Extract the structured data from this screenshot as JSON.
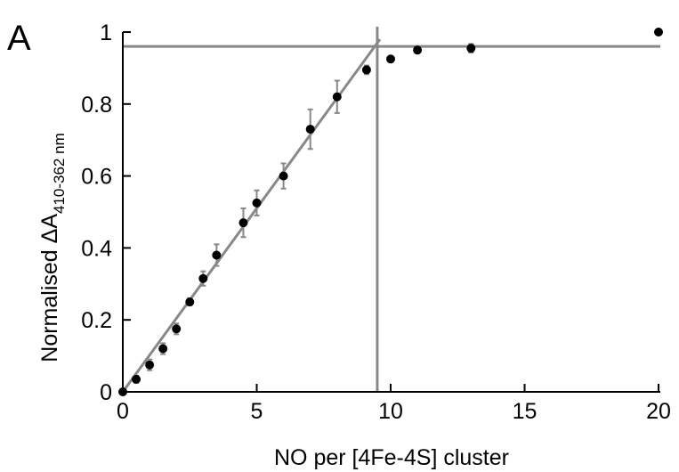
{
  "panel_label": "A",
  "chart_data": {
    "type": "scatter",
    "title": "",
    "xlabel": "NO per [4Fe-4S] cluster",
    "ylabel": {
      "main": "Normalised ΔA",
      "subscript": "410-362 nm"
    },
    "xlim": [
      0,
      20
    ],
    "ylim": [
      0,
      1
    ],
    "xticks": [
      0,
      5,
      10,
      15,
      20
    ],
    "xtick_labels": [
      "0",
      "5",
      "10",
      "15",
      "20"
    ],
    "yticks": [
      0,
      0.2,
      0.4,
      0.6,
      0.8,
      1
    ],
    "ytick_labels": [
      "0",
      "0.2",
      "0.4",
      "0.6",
      "0.8",
      "1"
    ],
    "grid": false,
    "series": [
      {
        "points": [
          {
            "x": 0,
            "y": 0,
            "err": 0
          },
          {
            "x": 0.5,
            "y": 0.035,
            "err": 0.01
          },
          {
            "x": 1,
            "y": 0.075,
            "err": 0.015
          },
          {
            "x": 1.5,
            "y": 0.12,
            "err": 0.015
          },
          {
            "x": 2,
            "y": 0.175,
            "err": 0.015
          },
          {
            "x": 2.5,
            "y": 0.25,
            "err": 0.01
          },
          {
            "x": 3,
            "y": 0.315,
            "err": 0.02
          },
          {
            "x": 3.5,
            "y": 0.38,
            "err": 0.03
          },
          {
            "x": 4.5,
            "y": 0.47,
            "err": 0.04
          },
          {
            "x": 5,
            "y": 0.525,
            "err": 0.035
          },
          {
            "x": 6,
            "y": 0.6,
            "err": 0.035
          },
          {
            "x": 7,
            "y": 0.73,
            "err": 0.055
          },
          {
            "x": 8,
            "y": 0.82,
            "err": 0.045
          },
          {
            "x": 9.1,
            "y": 0.895,
            "err": 0.012
          },
          {
            "x": 10,
            "y": 0.925,
            "err": 0
          },
          {
            "x": 11,
            "y": 0.95,
            "err": 0.008
          },
          {
            "x": 13,
            "y": 0.955,
            "err": 0.012
          },
          {
            "x": 20,
            "y": 1.0,
            "err": 0
          }
        ]
      }
    ],
    "fit_lines": [
      {
        "kind": "linear",
        "from": [
          0,
          0
        ],
        "to": [
          9.5,
          0.96
        ]
      },
      {
        "kind": "horizontal",
        "y": 0.96
      },
      {
        "kind": "vertical",
        "x": 9.5
      }
    ],
    "colors": {
      "points": "#000000",
      "fit": "#888888",
      "axis": "#000000"
    }
  }
}
